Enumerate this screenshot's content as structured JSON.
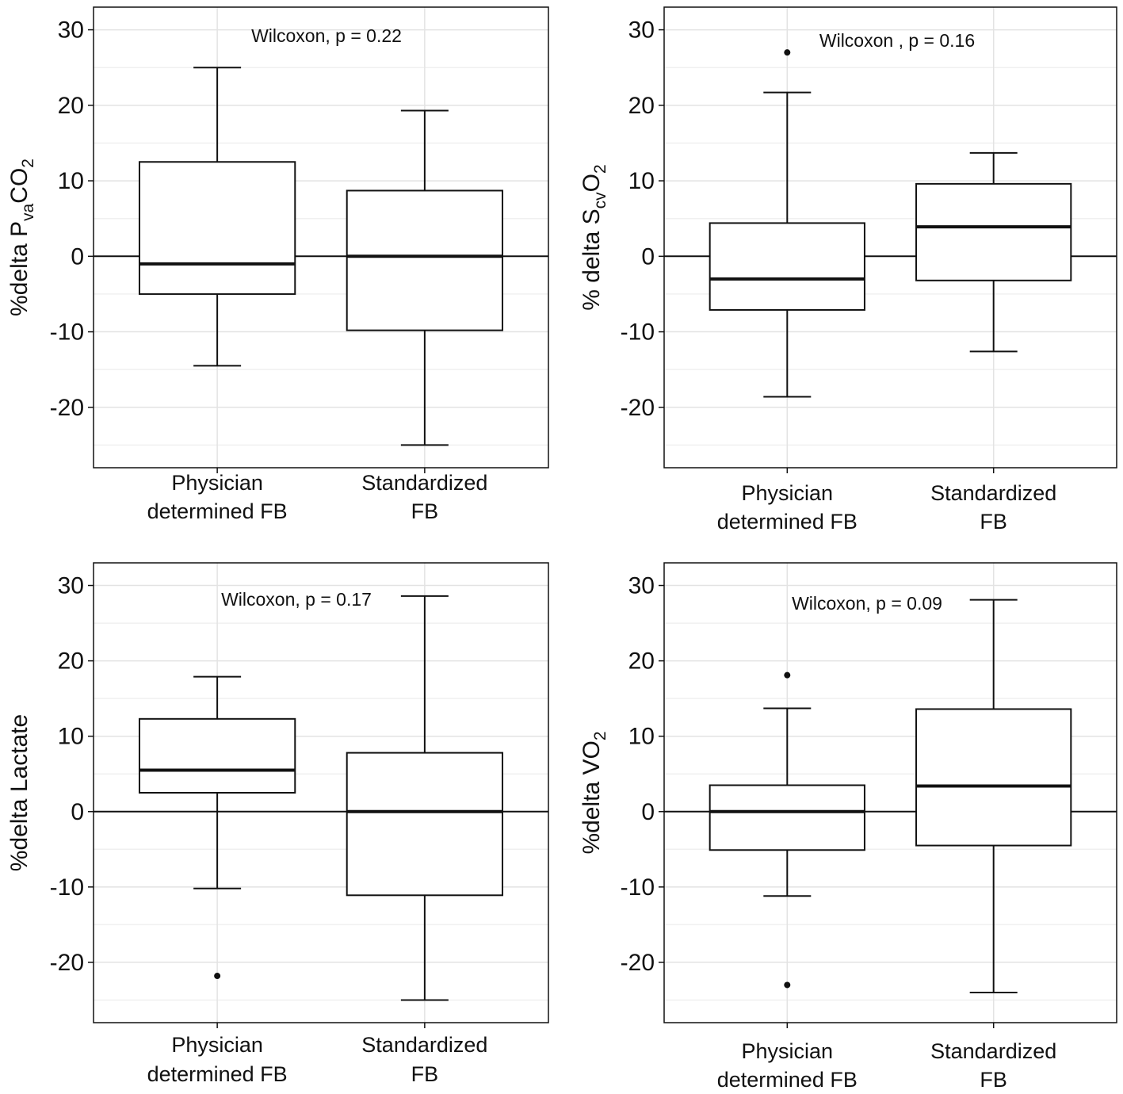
{
  "colors": {
    "grid_major": "#e3e3e3",
    "grid_minor": "#f0f0f0",
    "ink": "#111111",
    "background": "#ffffff"
  },
  "chart_data": [
    {
      "type": "box",
      "ylabel_parts": [
        {
          "text": "%delta P",
          "sub": false
        },
        {
          "text": "va",
          "sub": true
        },
        {
          "text": "CO",
          "sub": false
        },
        {
          "text": "2",
          "sub": true
        }
      ],
      "categories": [
        {
          "line1": "Physician",
          "line2": "determined FB"
        },
        {
          "line1": "Standardized",
          "line2": "FB"
        }
      ],
      "annotation": "Wilcoxon, p = 0.22",
      "ylim": [
        -28,
        33
      ],
      "yticks": [
        -20,
        -10,
        0,
        10,
        20,
        30
      ],
      "boxes": [
        {
          "whisker_low": -14.5,
          "q1": -5,
          "median": -1,
          "q3": 12.5,
          "whisker_high": 25,
          "outliers": []
        },
        {
          "whisker_low": -25,
          "q1": -9.8,
          "median": 0,
          "q3": 8.7,
          "whisker_high": 19.3,
          "outliers": []
        }
      ]
    },
    {
      "type": "box",
      "ylabel_parts": [
        {
          "text": "% delta S",
          "sub": false
        },
        {
          "text": "cv",
          "sub": true
        },
        {
          "text": "O",
          "sub": false
        },
        {
          "text": "2",
          "sub": true
        }
      ],
      "categories": [
        {
          "line1": "Physician",
          "line2": "determined FB"
        },
        {
          "line1": "Standardized",
          "line2": "FB"
        }
      ],
      "annotation": "Wilcoxon , p = 0.16",
      "ylim": [
        -28,
        33
      ],
      "yticks": [
        -20,
        -10,
        0,
        10,
        20,
        30
      ],
      "boxes": [
        {
          "whisker_low": -18.6,
          "q1": -7.1,
          "median": -3,
          "q3": 4.4,
          "whisker_high": 21.7,
          "outliers": [
            27
          ]
        },
        {
          "whisker_low": -12.6,
          "q1": -3.2,
          "median": 3.9,
          "q3": 9.6,
          "whisker_high": 13.7,
          "outliers": []
        }
      ]
    },
    {
      "type": "box",
      "ylabel_parts": [
        {
          "text": "%delta Lactate",
          "sub": false
        }
      ],
      "categories": [
        {
          "line1": "Physician",
          "line2": "determined FB"
        },
        {
          "line1": "Standardized",
          "line2": "FB"
        }
      ],
      "annotation": "Wilcoxon, p = 0.17",
      "ylim": [
        -28,
        33
      ],
      "yticks": [
        -20,
        -10,
        0,
        10,
        20,
        30
      ],
      "boxes": [
        {
          "whisker_low": -10.2,
          "q1": 2.5,
          "median": 5.5,
          "q3": 12.3,
          "whisker_high": 17.9,
          "outliers": [
            -21.8
          ]
        },
        {
          "whisker_low": -25,
          "q1": -11.1,
          "median": 0,
          "q3": 7.8,
          "whisker_high": 28.6,
          "outliers": []
        }
      ]
    },
    {
      "type": "box",
      "ylabel_parts": [
        {
          "text": "%delta VO",
          "sub": false
        },
        {
          "text": "2",
          "sub": true
        }
      ],
      "categories": [
        {
          "line1": "Physician",
          "line2": "determined FB"
        },
        {
          "line1": "Standardized",
          "line2": "FB"
        }
      ],
      "annotation": "Wilcoxon, p = 0.09",
      "ylim": [
        -28,
        33
      ],
      "yticks": [
        -20,
        -10,
        0,
        10,
        20,
        30
      ],
      "boxes": [
        {
          "whisker_low": -11.2,
          "q1": -5.1,
          "median": 0,
          "q3": 3.5,
          "whisker_high": 13.7,
          "outliers": [
            18.1,
            -23
          ]
        },
        {
          "whisker_low": -24,
          "q1": -4.5,
          "median": 3.4,
          "q3": 13.6,
          "whisker_high": 28.1,
          "outliers": []
        }
      ]
    }
  ]
}
